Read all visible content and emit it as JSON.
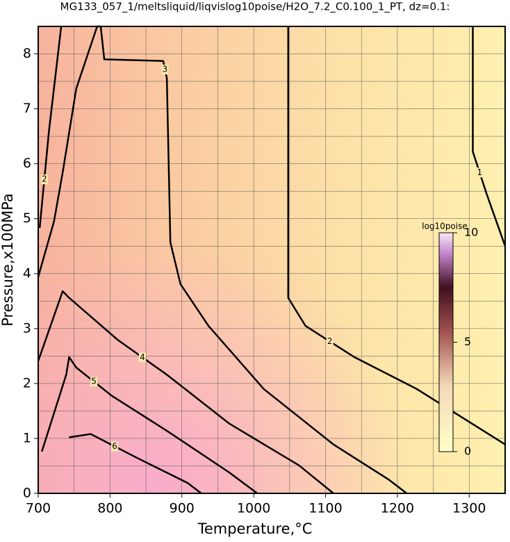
{
  "chart_data": {
    "type": "contour",
    "title": "MG133_057_1/meltsliquid/liqvislog10poise/H2O_7.2_C0.100_1_PT, dz=0.1:",
    "x_label": "Temperature,°C",
    "y_label": "Pressure,x100MPa",
    "xlim": [
      700,
      1350
    ],
    "ylim": [
      0,
      8.5
    ],
    "xticks": [
      700,
      800,
      900,
      1000,
      1100,
      1200,
      1300
    ],
    "yticks": [
      0,
      1,
      2,
      3,
      4,
      5,
      6,
      7,
      8
    ],
    "xminorticks": [
      750,
      850,
      950,
      1050,
      1150,
      1250
    ],
    "yminorticks": [
      0.5,
      1.5,
      2.5,
      3.5,
      4.5,
      5.5,
      6.5,
      7.5
    ],
    "grid": true,
    "contours": [
      {
        "label": "1",
        "x": [
          1305,
          1305,
          1324,
          1350
        ],
        "y": [
          8.5,
          6.22,
          5.46,
          4.5
        ]
      },
      {
        "label": "2",
        "x": [
          1048,
          1048,
          1072,
          1140,
          1227,
          1350
        ],
        "y": [
          8.5,
          3.56,
          3.05,
          2.48,
          1.9,
          0.89
        ]
      },
      {
        "label": "2",
        "x": [
          702,
          715,
          732
        ],
        "y": [
          4.83,
          6.6,
          8.5
        ]
      },
      {
        "label": "3",
        "x": [
          700,
          722,
          734,
          753,
          782,
          787,
          792,
          874,
          879,
          884,
          898,
          937,
          1014,
          1111,
          1188,
          1213
        ],
        "y": [
          3.94,
          4.95,
          5.84,
          7.37,
          8.5,
          8.5,
          7.9,
          7.87,
          7.56,
          4.57,
          3.81,
          3.05,
          1.9,
          0.89,
          0.25,
          0
        ]
      },
      {
        "label": "4",
        "x": [
          700,
          734,
          743,
          811,
          879,
          966,
          1063,
          1111
        ],
        "y": [
          2.41,
          3.68,
          3.56,
          2.79,
          2.16,
          1.27,
          0.51,
          0
        ]
      },
      {
        "label": "5",
        "x": [
          705,
          739,
          743,
          753,
          802,
          879,
          966,
          1005
        ],
        "y": [
          0.76,
          2.16,
          2.48,
          2.29,
          1.78,
          1.14,
          0.38,
          0
        ]
      },
      {
        "label": "6",
        "x": [
          743,
          773,
          840,
          908,
          927
        ],
        "y": [
          1.02,
          1.08,
          0.63,
          0.19,
          0
        ]
      }
    ],
    "colorbar": {
      "label": "log10poise",
      "lim": [
        0,
        10
      ],
      "ticks": [
        0,
        5,
        10
      ]
    }
  }
}
